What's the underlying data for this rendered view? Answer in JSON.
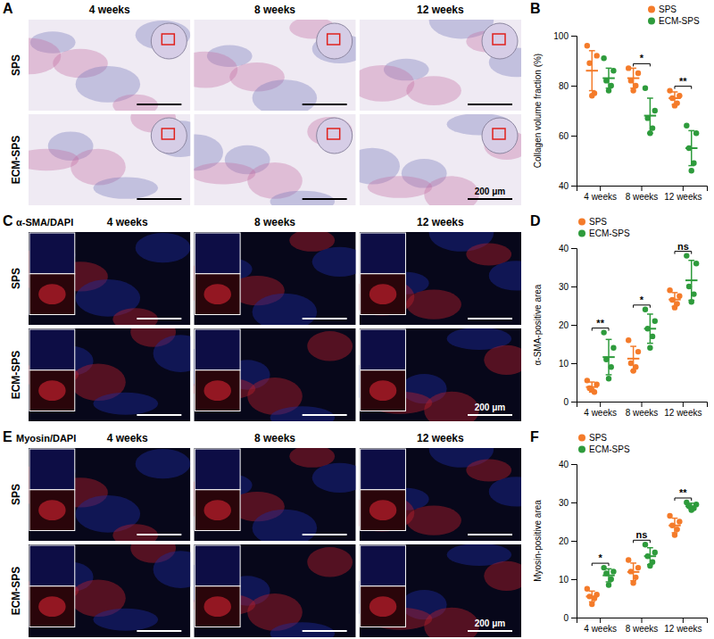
{
  "image_panels": [
    {
      "panel": "A",
      "columns": [
        "4 weeks",
        "8 weeks",
        "12 weeks"
      ],
      "rows": [
        "SPS",
        "ECM-SPS"
      ],
      "scale_bar": "200 μm"
    },
    {
      "panel": "C",
      "title": "α-SMA/DAPI",
      "columns": [
        "4 weeks",
        "8 weeks",
        "12 weeks"
      ],
      "rows": [
        "SPS",
        "ECM-SPS"
      ],
      "scale_bar": "200 μm"
    },
    {
      "panel": "E",
      "title": "Myosin/DAPI",
      "columns": [
        "4 weeks",
        "8 weeks",
        "12 weeks"
      ],
      "rows": [
        "SPS",
        "ECM-SPS"
      ],
      "scale_bar": "200 μm"
    }
  ],
  "chart_data": [
    {
      "panel": "B",
      "type": "dotplot",
      "y_label": "Collagen volume fraction (%)",
      "categories": [
        "4 weeks",
        "8 weeks",
        "12 weeks"
      ],
      "ylim": [
        40,
        100
      ],
      "yticks": [
        40,
        60,
        80,
        100
      ],
      "legend": "top-right",
      "series": [
        {
          "name": "SPS",
          "color": "#f47b2a",
          "values": [
            86,
            83,
            75
          ],
          "errors": [
            8,
            4,
            2.5
          ],
          "points": [
            [
              96,
              92,
              89,
              77,
              76
            ],
            [
              87,
              85,
              82,
              80,
              78
            ],
            [
              78,
              76,
              75,
              73,
              72
            ]
          ]
        },
        {
          "name": "ECM-SPS",
          "color": "#2e9b3c",
          "values": [
            83,
            68,
            55
          ],
          "errors": [
            4,
            7,
            7
          ],
          "points": [
            [
              91,
              86,
              82,
              80,
              78
            ],
            [
              79,
              70,
              67,
              63,
              61
            ],
            [
              64,
              61,
              55,
              49,
              46
            ]
          ]
        }
      ],
      "annotations": [
        {
          "x": "8 weeks",
          "text": "*"
        },
        {
          "x": "12 weeks",
          "text": "**"
        }
      ]
    },
    {
      "panel": "D",
      "type": "dotplot",
      "y_label": "α-SMA-positive area",
      "categories": [
        "4 weeks",
        "8 weeks",
        "12 weeks"
      ],
      "ylim": [
        0,
        40
      ],
      "yticks": [
        0,
        10,
        20,
        30,
        40
      ],
      "legend": "top-left",
      "series": [
        {
          "name": "SPS",
          "color": "#f47b2a",
          "values": [
            3.8,
            11.2,
            26.6
          ],
          "errors": [
            1.3,
            3.2,
            1.8
          ],
          "points": [
            [
              5.5,
              4.5,
              3.5,
              2.5,
              3
            ],
            [
              16,
              13,
              10,
              9,
              8
            ],
            [
              29,
              27.5,
              26.5,
              25.5,
              24.5
            ]
          ]
        },
        {
          "name": "ECM-SPS",
          "color": "#2e9b3c",
          "values": [
            11.6,
            19,
            31.6
          ],
          "errors": [
            4.6,
            3.8,
            5.2
          ],
          "points": [
            [
              18,
              14,
              11,
              9,
              6
            ],
            [
              24,
              21,
              19,
              17,
              14
            ],
            [
              38,
              36,
              30,
              28,
              26
            ]
          ]
        }
      ],
      "annotations": [
        {
          "x": "4 weeks",
          "text": "**"
        },
        {
          "x": "8 weeks",
          "text": "*"
        },
        {
          "x": "12 weeks",
          "text": "ns"
        }
      ]
    },
    {
      "panel": "F",
      "type": "dotplot",
      "y_label": "Myosin-positive area",
      "categories": [
        "4 weeks",
        "8 weeks",
        "12 weeks"
      ],
      "ylim": [
        0,
        40
      ],
      "yticks": [
        0,
        10,
        20,
        30,
        40
      ],
      "legend": "top-left",
      "series": [
        {
          "name": "SPS",
          "color": "#f47b2a",
          "values": [
            5.5,
            11.9,
            24
          ],
          "errors": [
            1.4,
            2.3,
            1.9
          ],
          "points": [
            [
              7.5,
              6,
              5.5,
              5,
              3.5
            ],
            [
              15,
              13,
              12,
              10.5,
              9
            ],
            [
              26.5,
              25,
              24,
              23,
              21.5
            ]
          ]
        },
        {
          "name": "ECM-SPS",
          "color": "#2e9b3c",
          "values": [
            11,
            16,
            29
          ],
          "errors": [
            1.7,
            2.2,
            0.8
          ],
          "points": [
            [
              13,
              12,
              11.5,
              10,
              8.5
            ],
            [
              19,
              17,
              16,
              14.5,
              13.5
            ],
            [
              30,
              29.5,
              29,
              28.5,
              28
            ]
          ]
        }
      ],
      "annotations": [
        {
          "x": "4 weeks",
          "text": "*"
        },
        {
          "x": "8 weeks",
          "text": "ns"
        },
        {
          "x": "12 weeks",
          "text": "**"
        }
      ]
    }
  ]
}
